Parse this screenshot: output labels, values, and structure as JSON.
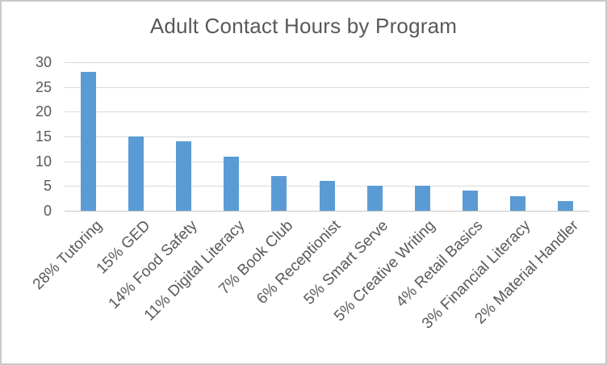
{
  "chart_data": {
    "type": "bar",
    "title": "Adult Contact Hours by Program",
    "categories": [
      "28% Tutoring",
      "15% GED",
      "14% Food Safety",
      "11% Digital Literacy",
      "7% Book Club",
      "6% Receptionist",
      "5% Smart Serve",
      "5% Creative Writing",
      "4% Retail Basics",
      "3% Financial Literacy",
      "2% Material Handler"
    ],
    "values": [
      28,
      15,
      14,
      11,
      7,
      6,
      5,
      5,
      4,
      3,
      2
    ],
    "xlabel": "",
    "ylabel": "",
    "ylim": [
      0,
      30
    ],
    "yticks": [
      0,
      5,
      10,
      15,
      20,
      25,
      30
    ],
    "grid": true,
    "legend": false,
    "x_label_rotation_deg": -45,
    "bar_color": "#5b9bd5",
    "gridline_color": "#d9d9d9",
    "axis_line_color": "#c6c6c6",
    "text_color": "#595959",
    "frame_border_color": "#c9c9c9",
    "background_color": "#ffffff"
  }
}
